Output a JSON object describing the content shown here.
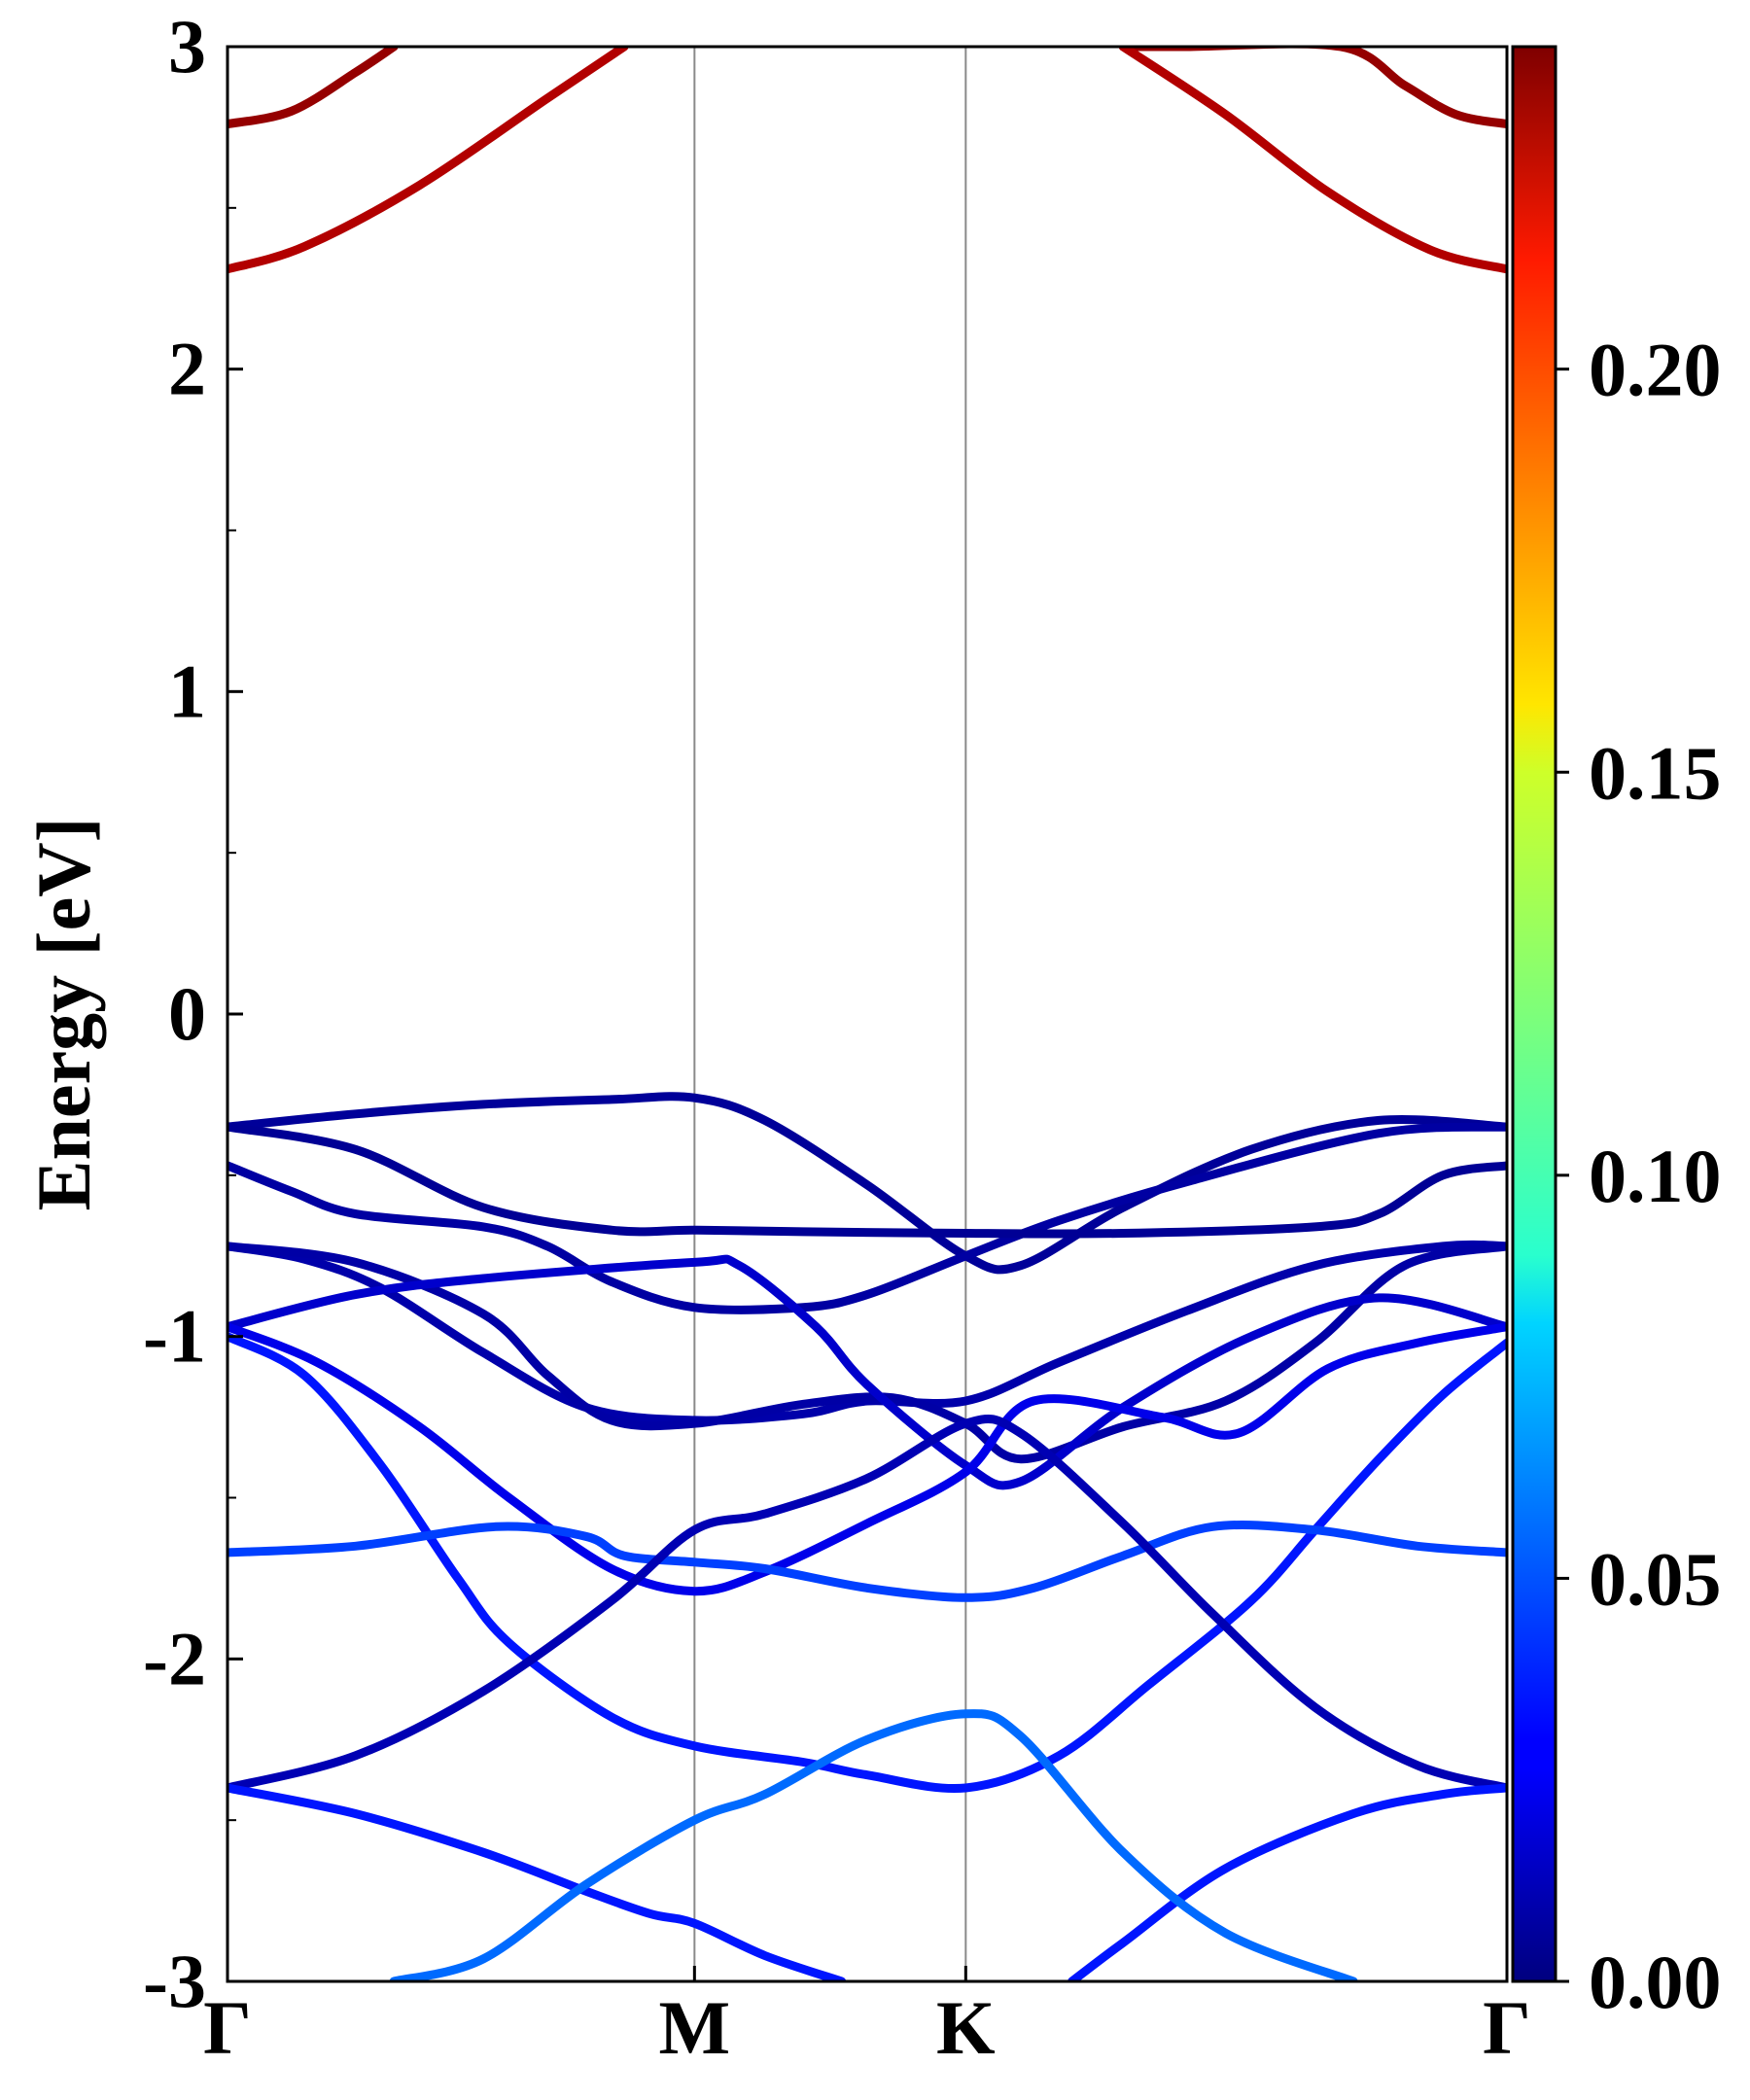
{
  "chart_data": {
    "type": "line",
    "title": "",
    "xlabel": "",
    "ylabel": "Energy [eV]",
    "ylim": [
      -3,
      3
    ],
    "yticks": [
      "-3",
      "-2",
      "-1",
      "0",
      "1",
      "2",
      "3"
    ],
    "kpoints": [
      {
        "label": "Γ",
        "pos": 0.0
      },
      {
        "label": "M",
        "pos": 0.365
      },
      {
        "label": "K",
        "pos": 0.577
      },
      {
        "label": "Γ",
        "pos": 1.0
      }
    ],
    "grid": false,
    "colorbar": {
      "cmap": "jet",
      "range": [
        0.0,
        0.24
      ],
      "ticks": [
        "0.00",
        "0.05",
        "0.10",
        "0.15",
        "0.20"
      ]
    },
    "series": [
      {
        "c": 0.235,
        "points": [
          [
            0,
            2.76
          ],
          [
            0.05,
            2.8
          ],
          [
            0.1,
            2.92
          ],
          [
            0.13,
            3.0
          ]
        ]
      },
      {
        "c": 0.235,
        "points": [
          [
            0.7,
            3.0
          ],
          [
            0.75,
            3.0
          ],
          [
            0.87,
            3.0
          ],
          [
            0.92,
            2.88
          ],
          [
            0.96,
            2.79
          ],
          [
            1.0,
            2.76
          ]
        ]
      },
      {
        "c": 0.228,
        "points": [
          [
            0,
            2.31
          ],
          [
            0.06,
            2.38
          ],
          [
            0.15,
            2.57
          ],
          [
            0.25,
            2.84
          ],
          [
            0.31,
            3.0
          ]
        ]
      },
      {
        "c": 0.228,
        "points": [
          [
            0.7,
            3.0
          ],
          [
            0.78,
            2.79
          ],
          [
            0.86,
            2.55
          ],
          [
            0.94,
            2.37
          ],
          [
            1.0,
            2.31
          ]
        ]
      },
      {
        "c": 0.006,
        "points": [
          [
            0,
            -0.35
          ],
          [
            0.1,
            -0.31
          ],
          [
            0.2,
            -0.28
          ],
          [
            0.3,
            -0.265
          ],
          [
            0.365,
            -0.26
          ],
          [
            0.42,
            -0.33
          ],
          [
            0.5,
            -0.53
          ],
          [
            0.577,
            -0.75
          ],
          [
            0.62,
            -0.78
          ],
          [
            0.7,
            -0.6
          ],
          [
            0.8,
            -0.42
          ],
          [
            0.9,
            -0.33
          ],
          [
            1.0,
            -0.35
          ]
        ]
      },
      {
        "c": 0.008,
        "points": [
          [
            0,
            -0.47
          ],
          [
            0.05,
            -0.55
          ],
          [
            0.1,
            -0.62
          ],
          [
            0.2,
            -0.66
          ],
          [
            0.25,
            -0.72
          ],
          [
            0.3,
            -0.83
          ],
          [
            0.365,
            -0.91
          ],
          [
            0.45,
            -0.91
          ],
          [
            0.5,
            -0.87
          ],
          [
            0.577,
            -0.75
          ],
          [
            0.65,
            -0.64
          ],
          [
            0.75,
            -0.52
          ],
          [
            0.9,
            -0.37
          ],
          [
            1.0,
            -0.35
          ]
        ]
      },
      {
        "c": 0.005,
        "points": [
          [
            0,
            -0.35
          ],
          [
            0.1,
            -0.42
          ],
          [
            0.2,
            -0.6
          ],
          [
            0.3,
            -0.67
          ],
          [
            0.365,
            -0.67
          ],
          [
            0.45,
            -0.675
          ],
          [
            0.577,
            -0.68
          ],
          [
            0.7,
            -0.68
          ],
          [
            0.85,
            -0.66
          ],
          [
            0.9,
            -0.62
          ],
          [
            0.95,
            -0.5
          ],
          [
            1.0,
            -0.47
          ]
        ]
      },
      {
        "c": 0.01,
        "points": [
          [
            0,
            -0.72
          ],
          [
            0.06,
            -0.76
          ],
          [
            0.12,
            -0.85
          ],
          [
            0.2,
            -1.05
          ],
          [
            0.28,
            -1.22
          ],
          [
            0.365,
            -1.26
          ],
          [
            0.45,
            -1.24
          ],
          [
            0.5,
            -1.2
          ],
          [
            0.577,
            -1.2
          ],
          [
            0.65,
            -1.08
          ],
          [
            0.75,
            -0.92
          ],
          [
            0.85,
            -0.78
          ],
          [
            0.95,
            -0.72
          ],
          [
            1.0,
            -0.72
          ]
        ]
      },
      {
        "c": 0.009,
        "points": [
          [
            0,
            -0.72
          ],
          [
            0.1,
            -0.77
          ],
          [
            0.2,
            -0.93
          ],
          [
            0.25,
            -1.12
          ],
          [
            0.3,
            -1.26
          ],
          [
            0.365,
            -1.27
          ],
          [
            0.45,
            -1.21
          ],
          [
            0.52,
            -1.19
          ],
          [
            0.577,
            -1.27
          ],
          [
            0.62,
            -1.38
          ],
          [
            0.7,
            -1.28
          ],
          [
            0.78,
            -1.2
          ],
          [
            0.85,
            -1.02
          ],
          [
            0.92,
            -0.78
          ],
          [
            1.0,
            -0.72
          ]
        ]
      },
      {
        "c": 0.018,
        "points": [
          [
            0,
            -0.97
          ],
          [
            0.1,
            -0.87
          ],
          [
            0.2,
            -0.82
          ],
          [
            0.365,
            -0.77
          ],
          [
            0.4,
            -0.78
          ],
          [
            0.46,
            -0.97
          ],
          [
            0.5,
            -1.15
          ],
          [
            0.577,
            -1.4
          ],
          [
            0.62,
            -1.45
          ],
          [
            0.7,
            -1.22
          ],
          [
            0.8,
            -1.0
          ],
          [
            0.9,
            -0.88
          ],
          [
            1.0,
            -0.97
          ]
        ]
      },
      {
        "c": 0.025,
        "points": [
          [
            0,
            -0.97
          ],
          [
            0.07,
            -1.08
          ],
          [
            0.15,
            -1.28
          ],
          [
            0.22,
            -1.5
          ],
          [
            0.3,
            -1.72
          ],
          [
            0.365,
            -1.79
          ],
          [
            0.42,
            -1.73
          ],
          [
            0.5,
            -1.58
          ],
          [
            0.577,
            -1.42
          ],
          [
            0.63,
            -1.2
          ],
          [
            0.73,
            -1.25
          ],
          [
            0.79,
            -1.3
          ],
          [
            0.86,
            -1.1
          ],
          [
            0.93,
            -1.02
          ],
          [
            1.0,
            -0.97
          ]
        ]
      },
      {
        "c": 0.035,
        "points": [
          [
            0,
            -1.0
          ],
          [
            0.06,
            -1.12
          ],
          [
            0.12,
            -1.4
          ],
          [
            0.18,
            -1.75
          ],
          [
            0.22,
            -1.95
          ],
          [
            0.3,
            -2.18
          ],
          [
            0.365,
            -2.27
          ],
          [
            0.45,
            -2.32
          ],
          [
            0.5,
            -2.36
          ],
          [
            0.577,
            -2.4
          ],
          [
            0.65,
            -2.3
          ],
          [
            0.72,
            -2.08
          ],
          [
            0.8,
            -1.82
          ],
          [
            0.85,
            -1.6
          ],
          [
            0.9,
            -1.38
          ],
          [
            0.95,
            -1.18
          ],
          [
            1.0,
            -1.02
          ]
        ]
      },
      {
        "c": 0.045,
        "points": [
          [
            0,
            -1.67
          ],
          [
            0.1,
            -1.65
          ],
          [
            0.21,
            -1.59
          ],
          [
            0.28,
            -1.62
          ],
          [
            0.31,
            -1.68
          ],
          [
            0.365,
            -1.7
          ],
          [
            0.42,
            -1.72
          ],
          [
            0.5,
            -1.78
          ],
          [
            0.577,
            -1.81
          ],
          [
            0.63,
            -1.78
          ],
          [
            0.7,
            -1.68
          ],
          [
            0.77,
            -1.59
          ],
          [
            0.85,
            -1.6
          ],
          [
            0.93,
            -1.65
          ],
          [
            1.0,
            -1.67
          ]
        ]
      },
      {
        "c": 0.012,
        "points": [
          [
            0,
            -2.4
          ],
          [
            0.1,
            -2.3
          ],
          [
            0.2,
            -2.1
          ],
          [
            0.3,
            -1.82
          ],
          [
            0.365,
            -1.6
          ],
          [
            0.42,
            -1.55
          ],
          [
            0.5,
            -1.44
          ],
          [
            0.577,
            -1.27
          ],
          [
            0.62,
            -1.3
          ],
          [
            0.7,
            -1.58
          ],
          [
            0.77,
            -1.86
          ],
          [
            0.85,
            -2.15
          ],
          [
            0.93,
            -2.33
          ],
          [
            1.0,
            -2.4
          ]
        ]
      },
      {
        "c": 0.035,
        "points": [
          [
            0,
            -2.4
          ],
          [
            0.1,
            -2.48
          ],
          [
            0.2,
            -2.6
          ],
          [
            0.28,
            -2.72
          ],
          [
            0.33,
            -2.79
          ],
          [
            0.365,
            -2.82
          ],
          [
            0.42,
            -2.92
          ],
          [
            0.48,
            -3.0
          ]
        ]
      },
      {
        "c": 0.035,
        "points": [
          [
            0.66,
            -3.0
          ],
          [
            0.7,
            -2.88
          ],
          [
            0.78,
            -2.65
          ],
          [
            0.88,
            -2.48
          ],
          [
            0.95,
            -2.42
          ],
          [
            1.0,
            -2.4
          ]
        ]
      },
      {
        "c": 0.055,
        "points": [
          [
            0.13,
            -3.0
          ],
          [
            0.2,
            -2.93
          ],
          [
            0.28,
            -2.7
          ],
          [
            0.365,
            -2.5
          ],
          [
            0.42,
            -2.42
          ],
          [
            0.5,
            -2.25
          ],
          [
            0.577,
            -2.17
          ],
          [
            0.62,
            -2.24
          ],
          [
            0.7,
            -2.6
          ],
          [
            0.78,
            -2.85
          ],
          [
            0.88,
            -3.0
          ]
        ]
      }
    ]
  }
}
